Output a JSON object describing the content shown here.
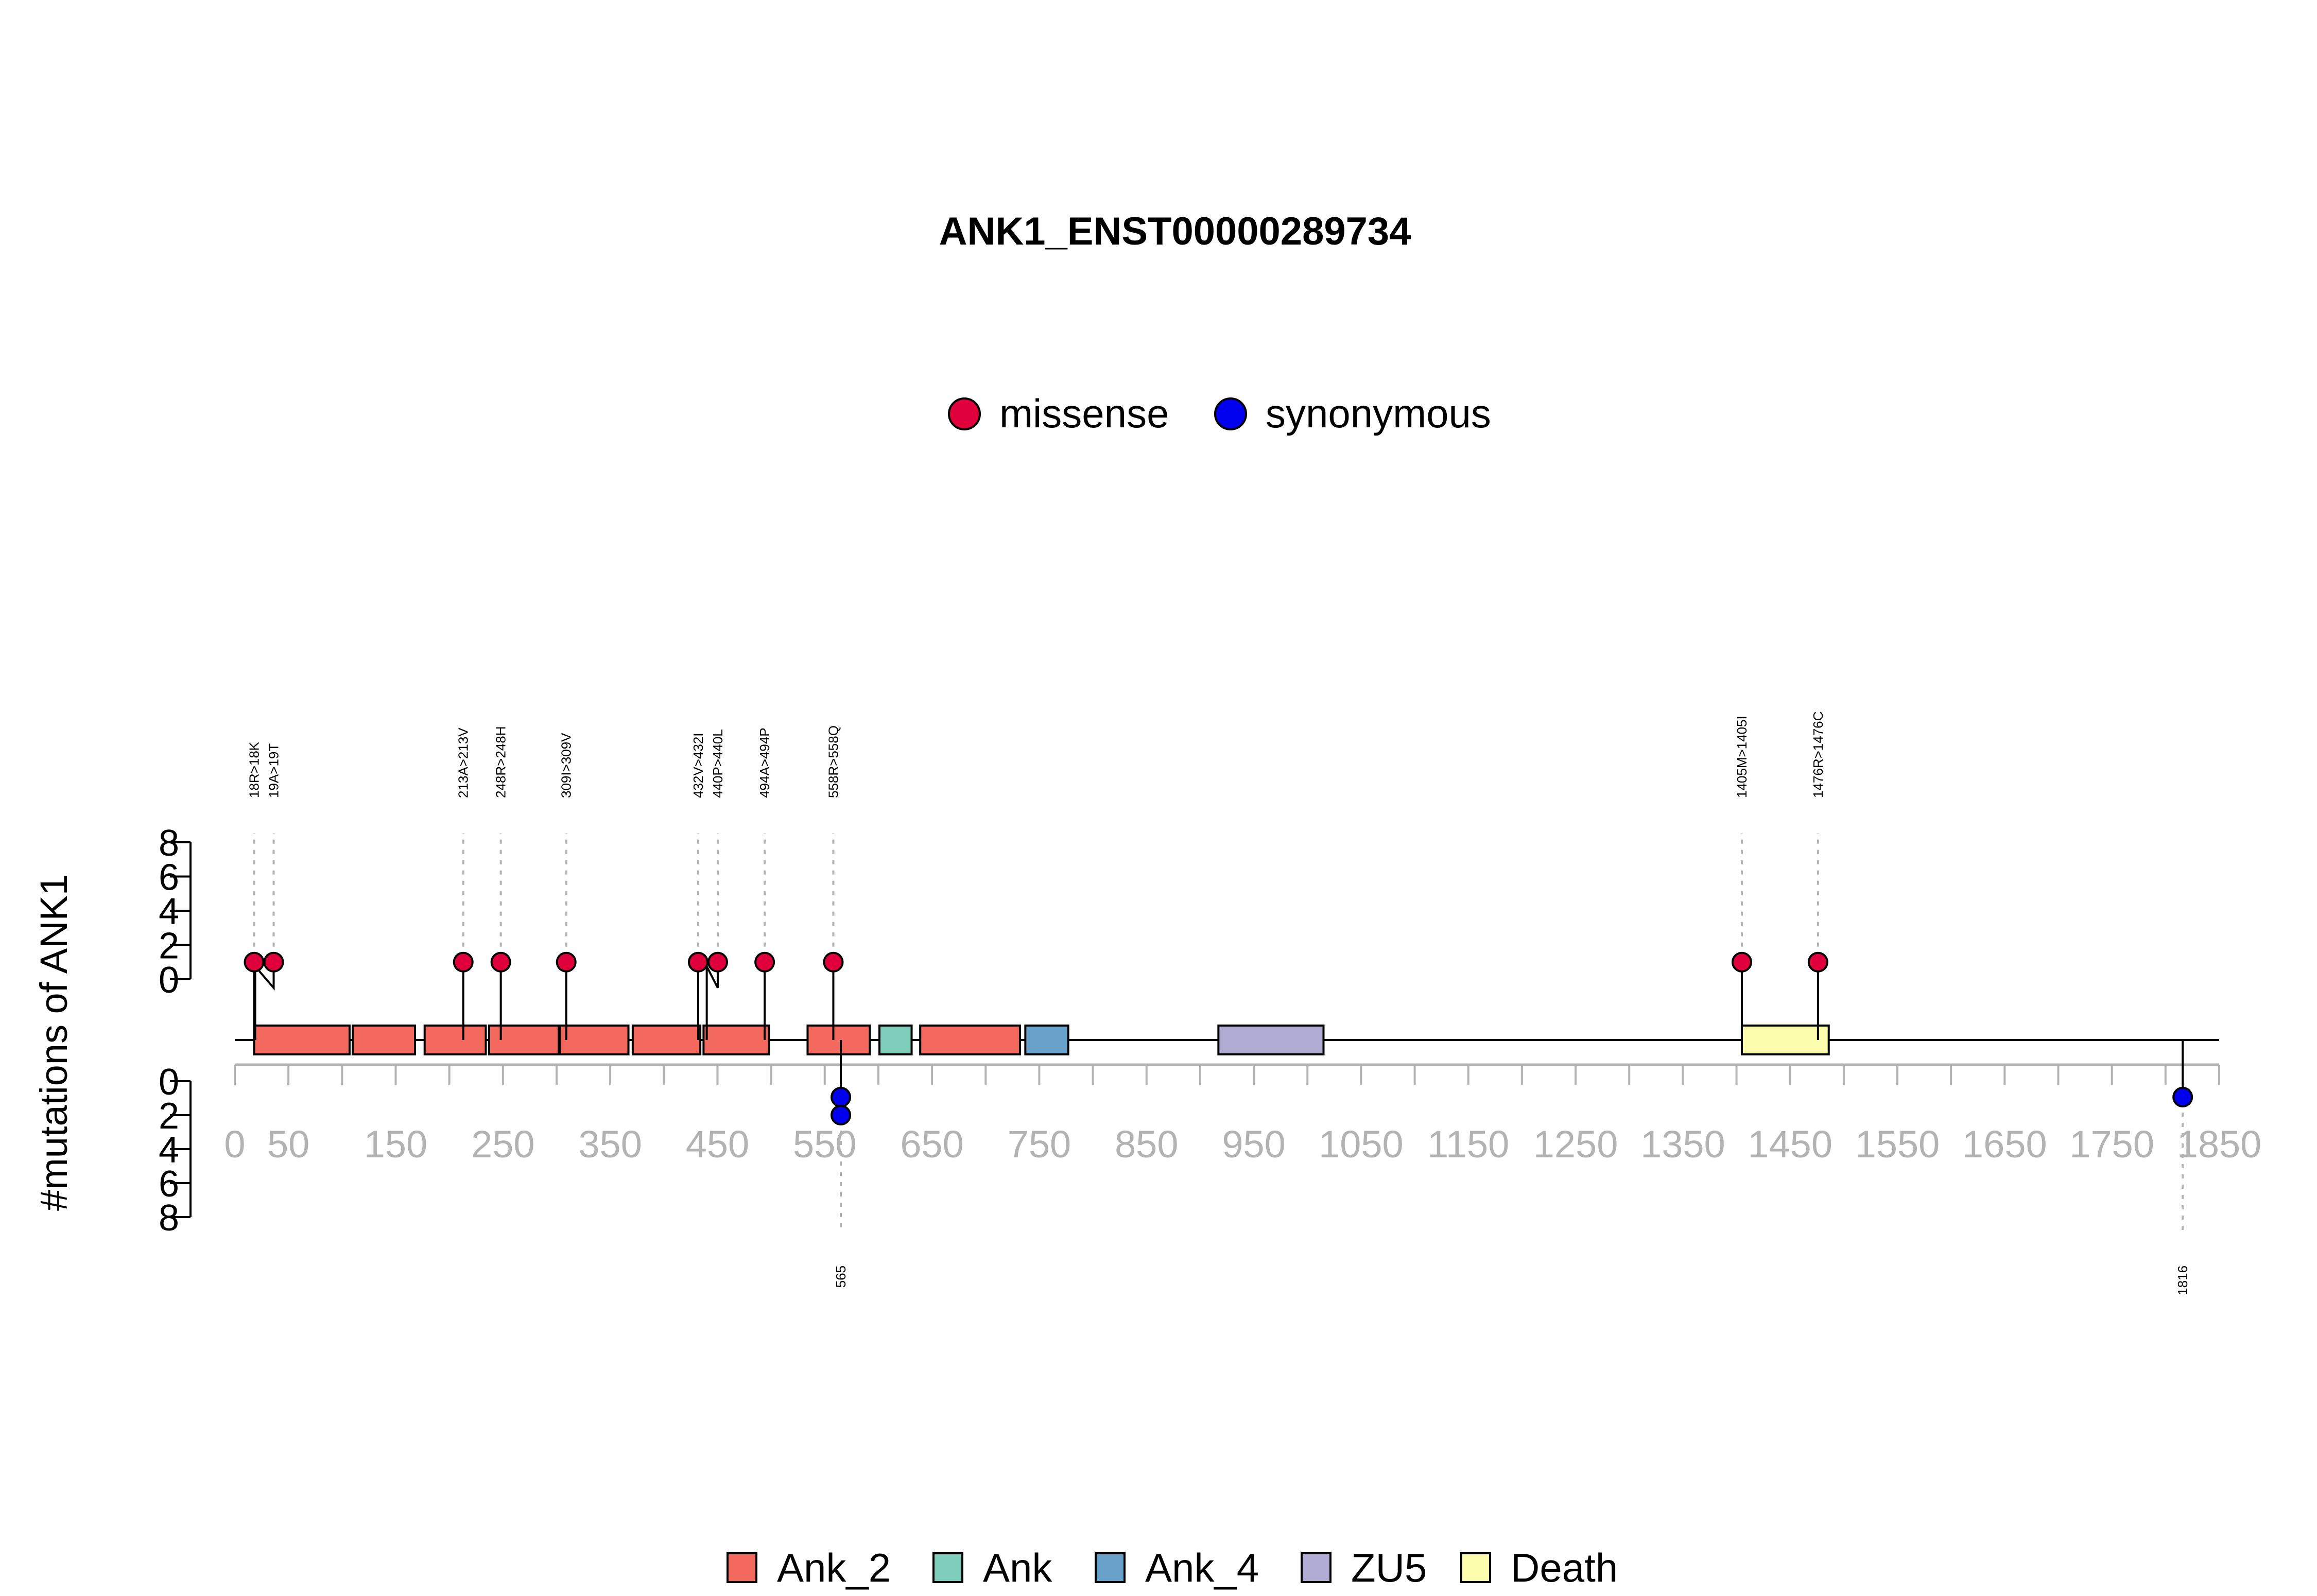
{
  "chart_data": {
    "type": "lollipop",
    "title": "ANK1_ENST00000289734",
    "ylabel": "#mutations of ANK1",
    "protein_length": 1881,
    "xlim": [
      0,
      1850
    ],
    "xticks": [
      0,
      50,
      150,
      250,
      350,
      450,
      550,
      650,
      750,
      850,
      950,
      1050,
      1150,
      1250,
      1350,
      1450,
      1550,
      1650,
      1750,
      1850
    ],
    "xtick_labels": [
      "0",
      "50",
      "150",
      "250",
      "350",
      "450",
      "550",
      "650",
      "750",
      "850",
      "950",
      "1050",
      "1150",
      "1250",
      "1350",
      "1450",
      "1550",
      "1650",
      "1750",
      "1850"
    ],
    "ylim_top": [
      0,
      8
    ],
    "ylim_bottom": [
      0,
      8
    ],
    "yticks": [
      0,
      2,
      4,
      6,
      8
    ],
    "ytick_labels": [
      "0",
      "2",
      "4",
      "6",
      "8"
    ],
    "mutation_types": [
      {
        "name": "missense",
        "color": "#e0003c"
      },
      {
        "name": "synonymous",
        "color": "#0000ee"
      }
    ],
    "domain_types": [
      {
        "name": "Ank_2",
        "color": "#f4695e"
      },
      {
        "name": "Ank",
        "color": "#7fcdbb"
      },
      {
        "name": "Ank_4",
        "color": "#67a1c9"
      },
      {
        "name": "ZU5",
        "color": "#b1acd4"
      },
      {
        "name": "Death",
        "color": "#fdfdae"
      }
    ],
    "domains": [
      {
        "name": "Ank_2",
        "start": 18,
        "end": 107
      },
      {
        "name": "Ank_2",
        "start": 110,
        "end": 168
      },
      {
        "name": "Ank_2",
        "start": 177,
        "end": 234
      },
      {
        "name": "Ank_2",
        "start": 237,
        "end": 302
      },
      {
        "name": "Ank_2",
        "start": 303,
        "end": 367
      },
      {
        "name": "Ank_2",
        "start": 371,
        "end": 434
      },
      {
        "name": "Ank_2",
        "start": 437,
        "end": 498
      },
      {
        "name": "Ank_2",
        "start": 534,
        "end": 592
      },
      {
        "name": "Ank",
        "start": 601,
        "end": 631
      },
      {
        "name": "Ank_2",
        "start": 639,
        "end": 732
      },
      {
        "name": "Ank_4",
        "start": 737,
        "end": 777
      },
      {
        "name": "ZU5",
        "start": 917,
        "end": 1015
      },
      {
        "name": "Death",
        "start": 1405,
        "end": 1486
      }
    ],
    "mutations_top": [
      {
        "position": 18,
        "count": 1,
        "type": "missense",
        "label": "18R>18K"
      },
      {
        "position": 19,
        "count": 1,
        "type": "missense",
        "label": "19A>19T"
      },
      {
        "position": 213,
        "count": 1,
        "type": "missense",
        "label": "213A>213V"
      },
      {
        "position": 248,
        "count": 1,
        "type": "missense",
        "label": "248R>248H"
      },
      {
        "position": 309,
        "count": 1,
        "type": "missense",
        "label": "309I>309V"
      },
      {
        "position": 432,
        "count": 1,
        "type": "missense",
        "label": "432V>432I"
      },
      {
        "position": 440,
        "count": 1,
        "type": "missense",
        "label": "440P>440L"
      },
      {
        "position": 494,
        "count": 1,
        "type": "missense",
        "label": "494A>494P"
      },
      {
        "position": 558,
        "count": 1,
        "type": "missense",
        "label": "558R>558Q"
      },
      {
        "position": 1405,
        "count": 1,
        "type": "missense",
        "label": "1405M>1405I"
      },
      {
        "position": 1476,
        "count": 1,
        "type": "missense",
        "label": "1476R>1476C"
      }
    ],
    "mutations_bottom": [
      {
        "position": 565,
        "count": 2,
        "type": "synonymous",
        "label": "565"
      },
      {
        "position": 1816,
        "count": 1,
        "type": "synonymous",
        "label": "1816"
      }
    ]
  }
}
